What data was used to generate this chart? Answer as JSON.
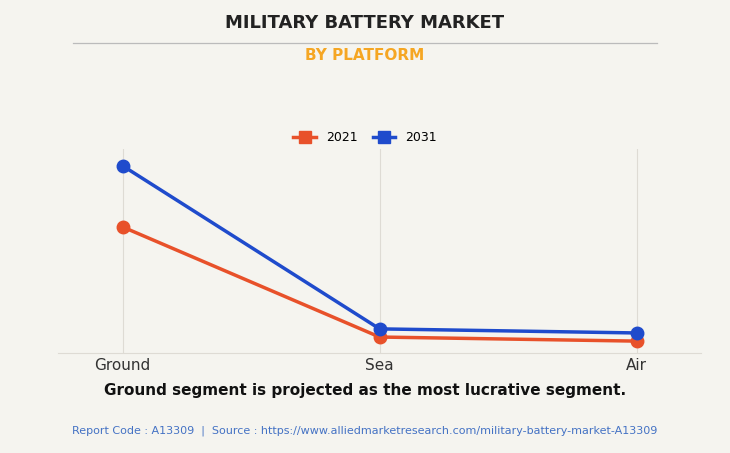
{
  "title": "MILITARY BATTERY MARKET",
  "subtitle": "BY PLATFORM",
  "subtitle_color": "#F5A623",
  "categories": [
    "Ground",
    "Sea",
    "Air"
  ],
  "series": [
    {
      "label": "2021",
      "color": "#E8512A",
      "values": [
        62,
        8,
        6
      ]
    },
    {
      "label": "2031",
      "color": "#1F4BCC",
      "values": [
        92,
        12,
        10
      ]
    }
  ],
  "ylim": [
    0,
    100
  ],
  "background_color": "#F5F4EF",
  "plot_background_color": "#F5F4EF",
  "grid_color": "#DEDBD4",
  "footer_text": "Ground segment is projected as the most lucrative segment.",
  "source_text": "Report Code : A13309  |  Source : https://www.alliedmarketresearch.com/military-battery-market-A13309",
  "source_color": "#4472C4",
  "title_fontsize": 13,
  "subtitle_fontsize": 11,
  "footer_fontsize": 11,
  "source_fontsize": 8,
  "legend_fontsize": 9,
  "marker_size": 9,
  "line_width": 2.5
}
